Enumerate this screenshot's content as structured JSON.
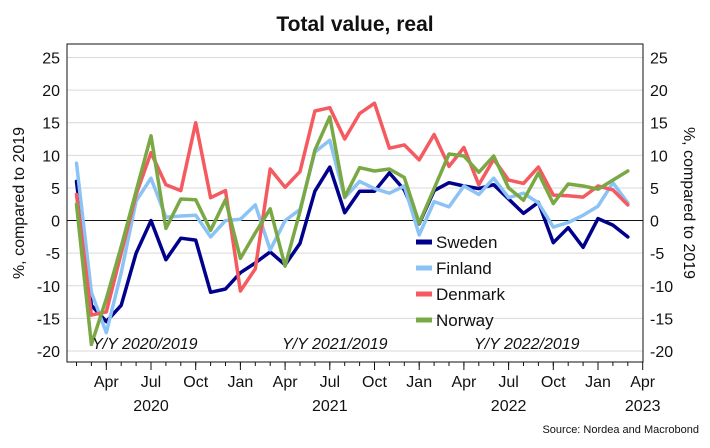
{
  "chart_data": {
    "type": "line",
    "title": "Total value, real",
    "ylabel_left": "%, compared to 2019",
    "ylabel_right": "%, compared to 2019",
    "ylim": [
      -20,
      25
    ],
    "yticks": [
      -20,
      -15,
      -10,
      -5,
      0,
      5,
      10,
      15,
      20,
      25
    ],
    "x_month_ticks": [
      {
        "label": "Apr",
        "i": 2
      },
      {
        "label": "Jul",
        "i": 5
      },
      {
        "label": "Oct",
        "i": 8
      },
      {
        "label": "Jan",
        "i": 11
      },
      {
        "label": "Apr",
        "i": 14
      },
      {
        "label": "Jul",
        "i": 17
      },
      {
        "label": "Oct",
        "i": 20
      },
      {
        "label": "Jan",
        "i": 23
      },
      {
        "label": "Apr",
        "i": 26
      },
      {
        "label": "Jul",
        "i": 29
      },
      {
        "label": "Oct",
        "i": 32
      },
      {
        "label": "Jan",
        "i": 35
      },
      {
        "label": "Apr",
        "i": 38
      }
    ],
    "x_year_labels": [
      {
        "label": "2020",
        "i": 5
      },
      {
        "label": "2021",
        "i": 17
      },
      {
        "label": "2022",
        "i": 29
      },
      {
        "label": "2023",
        "i": 38
      }
    ],
    "period_labels": [
      "Y/Y 2020/2019",
      "Y/Y 2021/2019",
      "Y/Y 2022/2019"
    ],
    "source": "Source: Nordea and Macrobond",
    "grid": true,
    "legend_position": "lower-right",
    "series": [
      {
        "name": "Sweden",
        "color": "#00008c",
        "values": [
          6,
          -13,
          -15.5,
          -13,
          -5,
          0,
          -6,
          -2.7,
          -3,
          -11,
          -10.5,
          -8,
          -6.5,
          -4.8,
          -6.8,
          -3.5,
          4.5,
          8.2,
          1.2,
          4.5,
          4.5,
          7.3,
          4.7,
          -0.5,
          4.6,
          5.8,
          5.3,
          4.9,
          5.5,
          3.3,
          1.1,
          2.8,
          -3.4,
          -1.1,
          -4.1,
          0.3,
          -0.7,
          -2.5
        ]
      },
      {
        "name": "Finland",
        "color": "#8cc3f5",
        "values": [
          8.8,
          -11,
          -17.2,
          -8,
          3,
          6.5,
          0.5,
          0.7,
          0.8,
          -2.5,
          0,
          0.2,
          2.4,
          -4.5,
          0,
          1.7,
          10.5,
          12.3,
          3.5,
          6,
          4.9,
          4.2,
          5.3,
          -2.2,
          2.9,
          2.1,
          5.3,
          4,
          6.5,
          3.5,
          4.2,
          2.7,
          -1,
          -0.3,
          0.8,
          2.2,
          5.8,
          2.7
        ]
      },
      {
        "name": "Denmark",
        "color": "#f45a5f",
        "values": [
          4,
          -14.5,
          -14,
          -5,
          4,
          10.4,
          5.5,
          4.6,
          15,
          3.5,
          4.6,
          -10.8,
          -7.4,
          7.9,
          5.1,
          7.5,
          16.8,
          17.3,
          12.5,
          16.4,
          18,
          11.1,
          11.6,
          9.3,
          13.2,
          8.3,
          11.2,
          5.5,
          9.4,
          6.2,
          5.7,
          8.2,
          3.9,
          3.8,
          3.6,
          5.3,
          4.7,
          2.4
        ]
      },
      {
        "name": "Norway",
        "color": "#7aa844",
        "values": [
          2.5,
          -19,
          -12,
          -4,
          4.5,
          13,
          -1.2,
          3.3,
          3.2,
          -1.5,
          3.2,
          -5.8,
          -1.9,
          1.8,
          -7,
          1.4,
          10.8,
          15.9,
          3.6,
          8.1,
          7.6,
          7.9,
          6.6,
          -0.4,
          4.9,
          10.2,
          9.9,
          7.4,
          9.9,
          5,
          3.1,
          7.3,
          2.6,
          5.6,
          5.3,
          4.8,
          6.2,
          7.6
        ]
      }
    ]
  }
}
